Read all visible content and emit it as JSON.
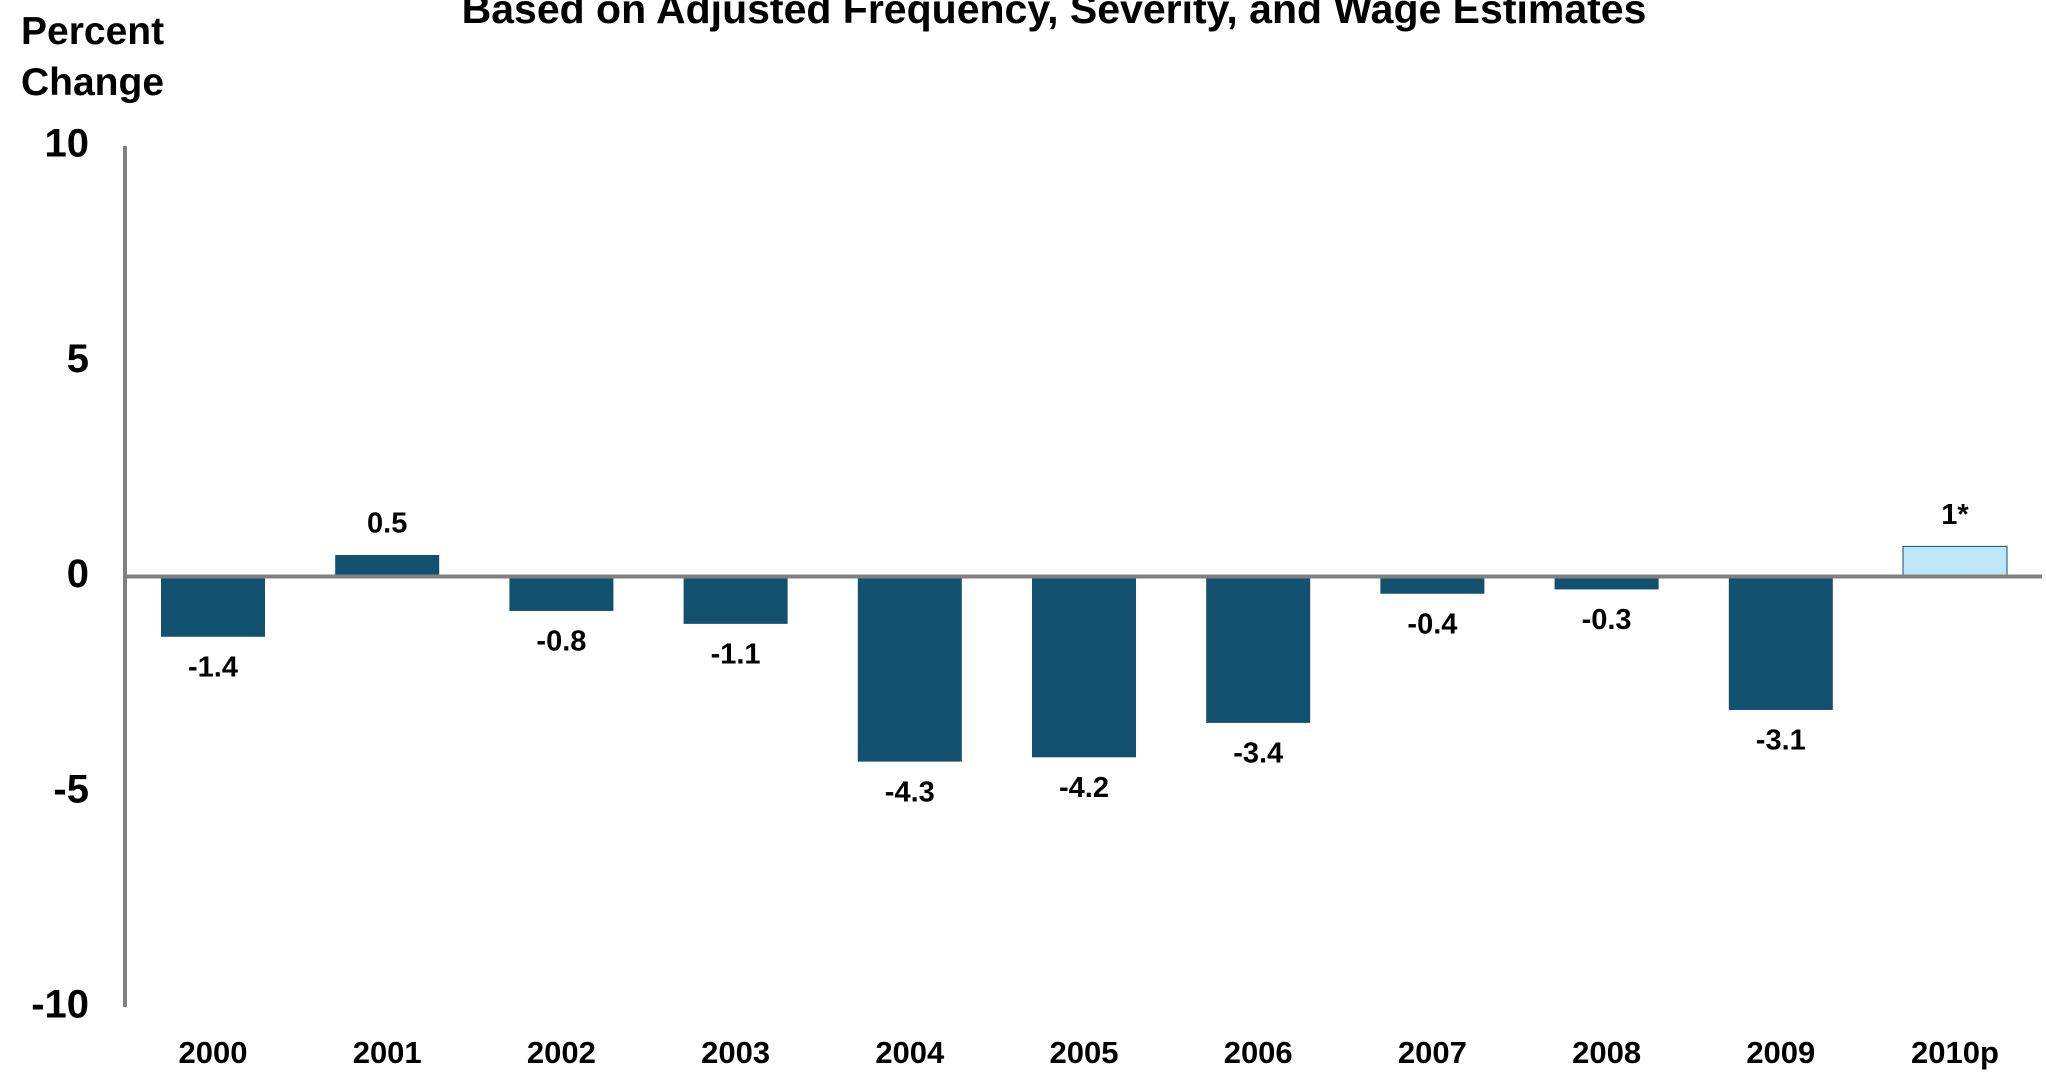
{
  "chart_data": {
    "type": "bar",
    "title": "Based on Adjusted Frequency, Severity, and Wage Estimates",
    "y_label": "Percent Change",
    "categories": [
      "2000",
      "2001",
      "2002",
      "2003",
      "2004",
      "2005",
      "2006",
      "2007",
      "2008",
      "2009",
      "2010p"
    ],
    "values": [
      -1.4,
      0.5,
      -0.8,
      -1.1,
      -4.3,
      -4.2,
      -3.4,
      -0.4,
      -0.3,
      -3.1,
      0.7
    ],
    "value_labels": [
      "-1.4",
      "0.5",
      "-0.8",
      "-1.1",
      "-4.3",
      "-4.2",
      "-3.4",
      "-0.4",
      "-0.3",
      "-3.1",
      "1*"
    ],
    "colors": [
      "#12506f",
      "#12506f",
      "#12506f",
      "#12506f",
      "#12506f",
      "#12506f",
      "#12506f",
      "#12506f",
      "#12506f",
      "#12506f",
      "#bfe6f7"
    ],
    "ylim": [
      -10,
      10
    ],
    "yticks": [
      -10,
      -5,
      0,
      5,
      10
    ],
    "grid": false
  }
}
